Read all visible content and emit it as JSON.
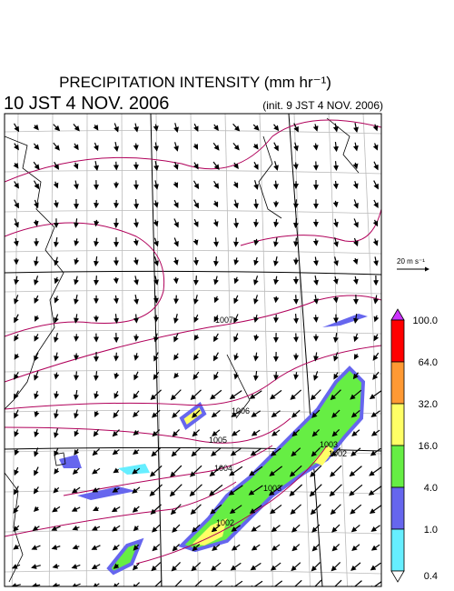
{
  "header": {
    "title": "PRECIPITATION INTENSITY (mm hr⁻¹)",
    "valid_time": "10 JST 4 NOV. 2006",
    "init_time": "(init. 9 JST 4 NOV. 2006)"
  },
  "wind_scale": "20 m s⁻¹",
  "colorbar": {
    "labels": [
      "100.0",
      "64.0",
      "32.0",
      "16.0",
      "4.0",
      "1.0",
      "0.4"
    ],
    "colors": [
      "#cc33ff",
      "#ff0000",
      "#ff9933",
      "#ffff66",
      "#66ee44",
      "#6666ee",
      "#66eeff",
      "#ffffff"
    ]
  },
  "isobar_labels": [
    "1007",
    "1006",
    "1005",
    "1004",
    "1003",
    "1002",
    "1003",
    "1002"
  ]
}
